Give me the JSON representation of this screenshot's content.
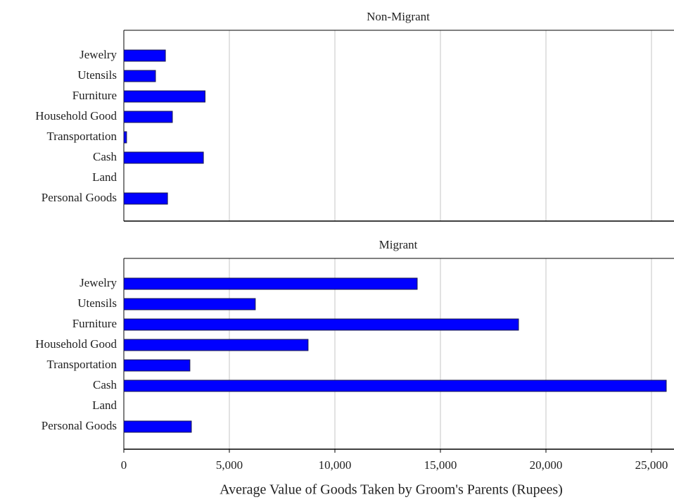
{
  "chart_data": [
    {
      "type": "bar",
      "title": "Non-Migrant",
      "categories": [
        "Jewelry",
        "Utensils",
        "Furniture",
        "Household Good",
        "Transportation",
        "Cash",
        "Land",
        "Personal Goods"
      ],
      "values": [
        1970,
        1500,
        3850,
        2300,
        130,
        3770,
        0,
        2070
      ],
      "color": "#0000ff",
      "xlim": [
        0,
        26000
      ],
      "xticks": [
        0,
        5000,
        10000,
        15000,
        20000,
        25000
      ],
      "grid": true
    },
    {
      "type": "bar",
      "title": "Migrant",
      "categories": [
        "Jewelry",
        "Utensils",
        "Furniture",
        "Household Good",
        "Transportation",
        "Cash",
        "Land",
        "Personal Goods"
      ],
      "values": [
        13900,
        6230,
        18700,
        8730,
        3130,
        25700,
        0,
        3200
      ],
      "color": "#0000ff",
      "xlim": [
        0,
        26000
      ],
      "xticks": [
        0,
        {
          "value": 5000,
          "label": "5,000"
        },
        {
          "value": 10000,
          "label": "10,000"
        },
        {
          "value": 15000,
          "label": "15,000"
        },
        {
          "value": 20000,
          "label": "20,000"
        },
        {
          "value": 25000,
          "label": "25,000"
        }
      ],
      "grid": true,
      "x_label": "Average Value of Goods Taken by Groom's Parents (Rupees)"
    }
  ]
}
